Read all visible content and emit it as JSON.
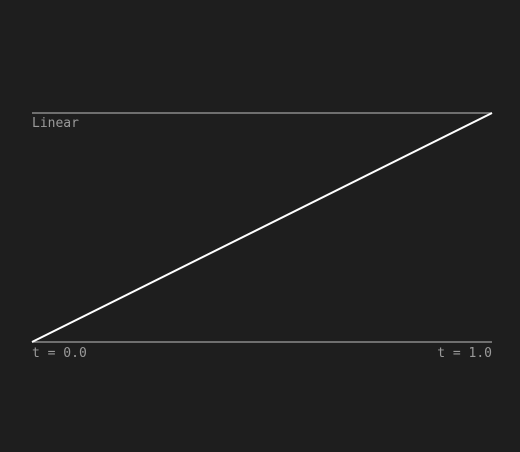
{
  "chart_data": {
    "type": "line",
    "title": "Linear",
    "x": [
      0.0,
      1.0
    ],
    "series": [
      {
        "values": [
          0.0,
          1.0
        ]
      }
    ],
    "xlim": [
      0.0,
      1.0
    ],
    "ylim": [
      0.0,
      1.0
    ],
    "x_start_label": "t = 0.0",
    "x_end_label": "t = 1.0",
    "grid": false,
    "colors": {
      "background": "#1e1e1e",
      "guide_line": "#8a8a8a",
      "curve": "#ffffff",
      "text": "#9a9a9a"
    }
  }
}
